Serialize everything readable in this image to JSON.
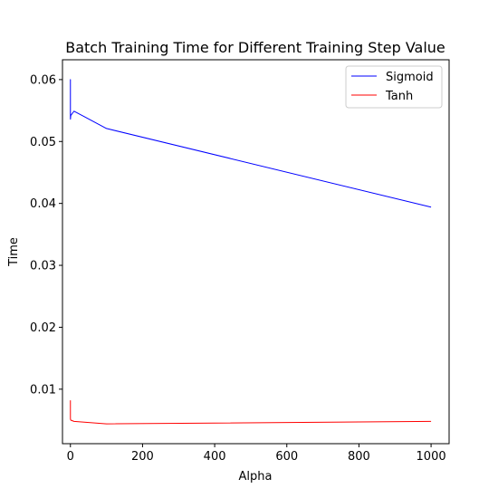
{
  "chart_data": {
    "type": "line",
    "title": "Batch Training Time for Different Training Step Value",
    "xlabel": "Alpha",
    "ylabel": "Time",
    "xlim": [
      -22,
      1050
    ],
    "ylim": [
      0.0012,
      0.0632
    ],
    "xticks": [
      0,
      200,
      400,
      600,
      800,
      1000
    ],
    "yticks": [
      0.01,
      0.02,
      0.03,
      0.04,
      0.05,
      0.06
    ],
    "xtick_labels": [
      "0",
      "200",
      "400",
      "600",
      "800",
      "1000"
    ],
    "ytick_labels": [
      "0.01",
      "0.02",
      "0.03",
      "0.04",
      "0.05",
      "0.06"
    ],
    "grid": false,
    "legend_position": "top-right",
    "x": [
      0.001,
      0.01,
      0.1,
      1,
      10,
      100,
      1000
    ],
    "series": [
      {
        "name": "Sigmoid",
        "color": "#0000ff",
        "values": [
          0.0538,
          0.06,
          0.0536,
          0.0542,
          0.0549,
          0.0521,
          0.0394
        ]
      },
      {
        "name": "Tanh",
        "color": "#ff0000",
        "values": [
          0.0082,
          0.0058,
          0.0052,
          0.005,
          0.0048,
          0.0044,
          0.0048
        ]
      }
    ]
  }
}
